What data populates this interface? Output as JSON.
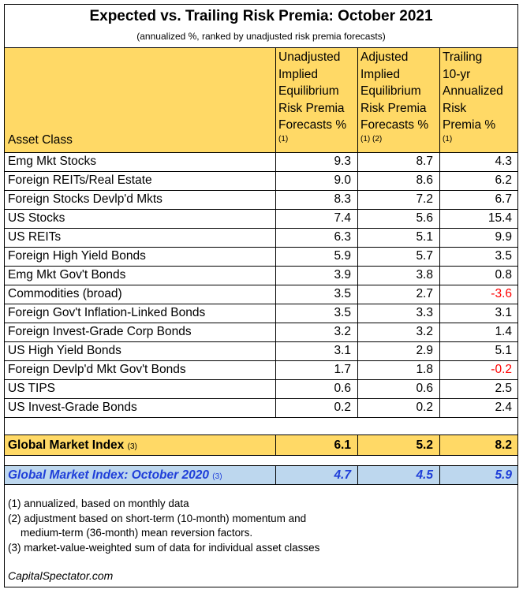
{
  "title": "Expected vs. Trailing Risk Premia: October 2021",
  "subtitle": "(annualized %, ranked by unadjusted risk premia forecasts)",
  "headers": {
    "asset_class": "Asset Class",
    "col1": [
      "Unadjusted",
      "Implied",
      "Equilibrium",
      "Risk Premia",
      "Forecasts %"
    ],
    "col1_note": "(1)",
    "col2": [
      "Adjusted",
      "Implied",
      "Equilibrium",
      "Risk Premia",
      "Forecasts %"
    ],
    "col2_note": "(1) (2)",
    "col3": [
      "Trailing",
      "10-yr",
      "Annualized",
      "Risk",
      "Premia %"
    ],
    "col3_note": "(1)"
  },
  "rows": [
    {
      "name": "Emg Mkt Stocks",
      "unadj": "9.3",
      "adj": "8.7",
      "trail": "4.3"
    },
    {
      "name": "Foreign REITs/Real Estate",
      "unadj": "9.0",
      "adj": "8.6",
      "trail": "6.2"
    },
    {
      "name": "Foreign Stocks Devlp'd Mkts",
      "unadj": "8.3",
      "adj": "7.2",
      "trail": "6.7"
    },
    {
      "name": "US Stocks",
      "unadj": "7.4",
      "adj": "5.6",
      "trail": "15.4"
    },
    {
      "name": "US REITs",
      "unadj": "6.3",
      "adj": "5.1",
      "trail": "9.9"
    },
    {
      "name": "Foreign High Yield Bonds",
      "unadj": "5.9",
      "adj": "5.7",
      "trail": "3.5"
    },
    {
      "name": "Emg Mkt Gov't Bonds",
      "unadj": "3.9",
      "adj": "3.8",
      "trail": "0.8"
    },
    {
      "name": "Commodities (broad)",
      "unadj": "3.5",
      "adj": "2.7",
      "trail": "-3.6"
    },
    {
      "name": "Foreign Gov't Inflation-Linked Bonds",
      "unadj": "3.5",
      "adj": "3.3",
      "trail": "3.1"
    },
    {
      "name": "Foreign Invest-Grade Corp Bonds",
      "unadj": "3.2",
      "adj": "3.2",
      "trail": "1.4"
    },
    {
      "name": "US High Yield Bonds",
      "unadj": "3.1",
      "adj": "2.9",
      "trail": "5.1"
    },
    {
      "name": "Foreign Devlp'd Mkt Gov't Bonds",
      "unadj": "1.7",
      "adj": "1.8",
      "trail": "-0.2"
    },
    {
      "name": "US TIPS",
      "unadj": "0.6",
      "adj": "0.6",
      "trail": "2.5"
    },
    {
      "name": "US Invest-Grade Bonds",
      "unadj": "0.2",
      "adj": "0.2",
      "trail": "2.4"
    }
  ],
  "gmi": {
    "name": "Global Market Index",
    "note": "(3)",
    "unadj": "6.1",
    "adj": "5.2",
    "trail": "8.2"
  },
  "gmi_2020": {
    "name": "Global Market Index: October 2020",
    "note": "(3)",
    "unadj": "4.7",
    "adj": "4.5",
    "trail": "5.9"
  },
  "footnotes": [
    "(1) annualized, based on monthly data",
    "(2) adjustment based on short-term (10-month) momentum and",
    "medium-term (36-month) mean reversion factors.",
    "(3) market-value-weighted sum of data for individual asset classes"
  ],
  "source": "CapitalSpectator.com",
  "colors": {
    "header_bg": "#ffd966",
    "gmi_2020_bg": "#bdd7ee",
    "gmi_2020_text": "#1f3fd9",
    "negative": "#ff0000"
  }
}
